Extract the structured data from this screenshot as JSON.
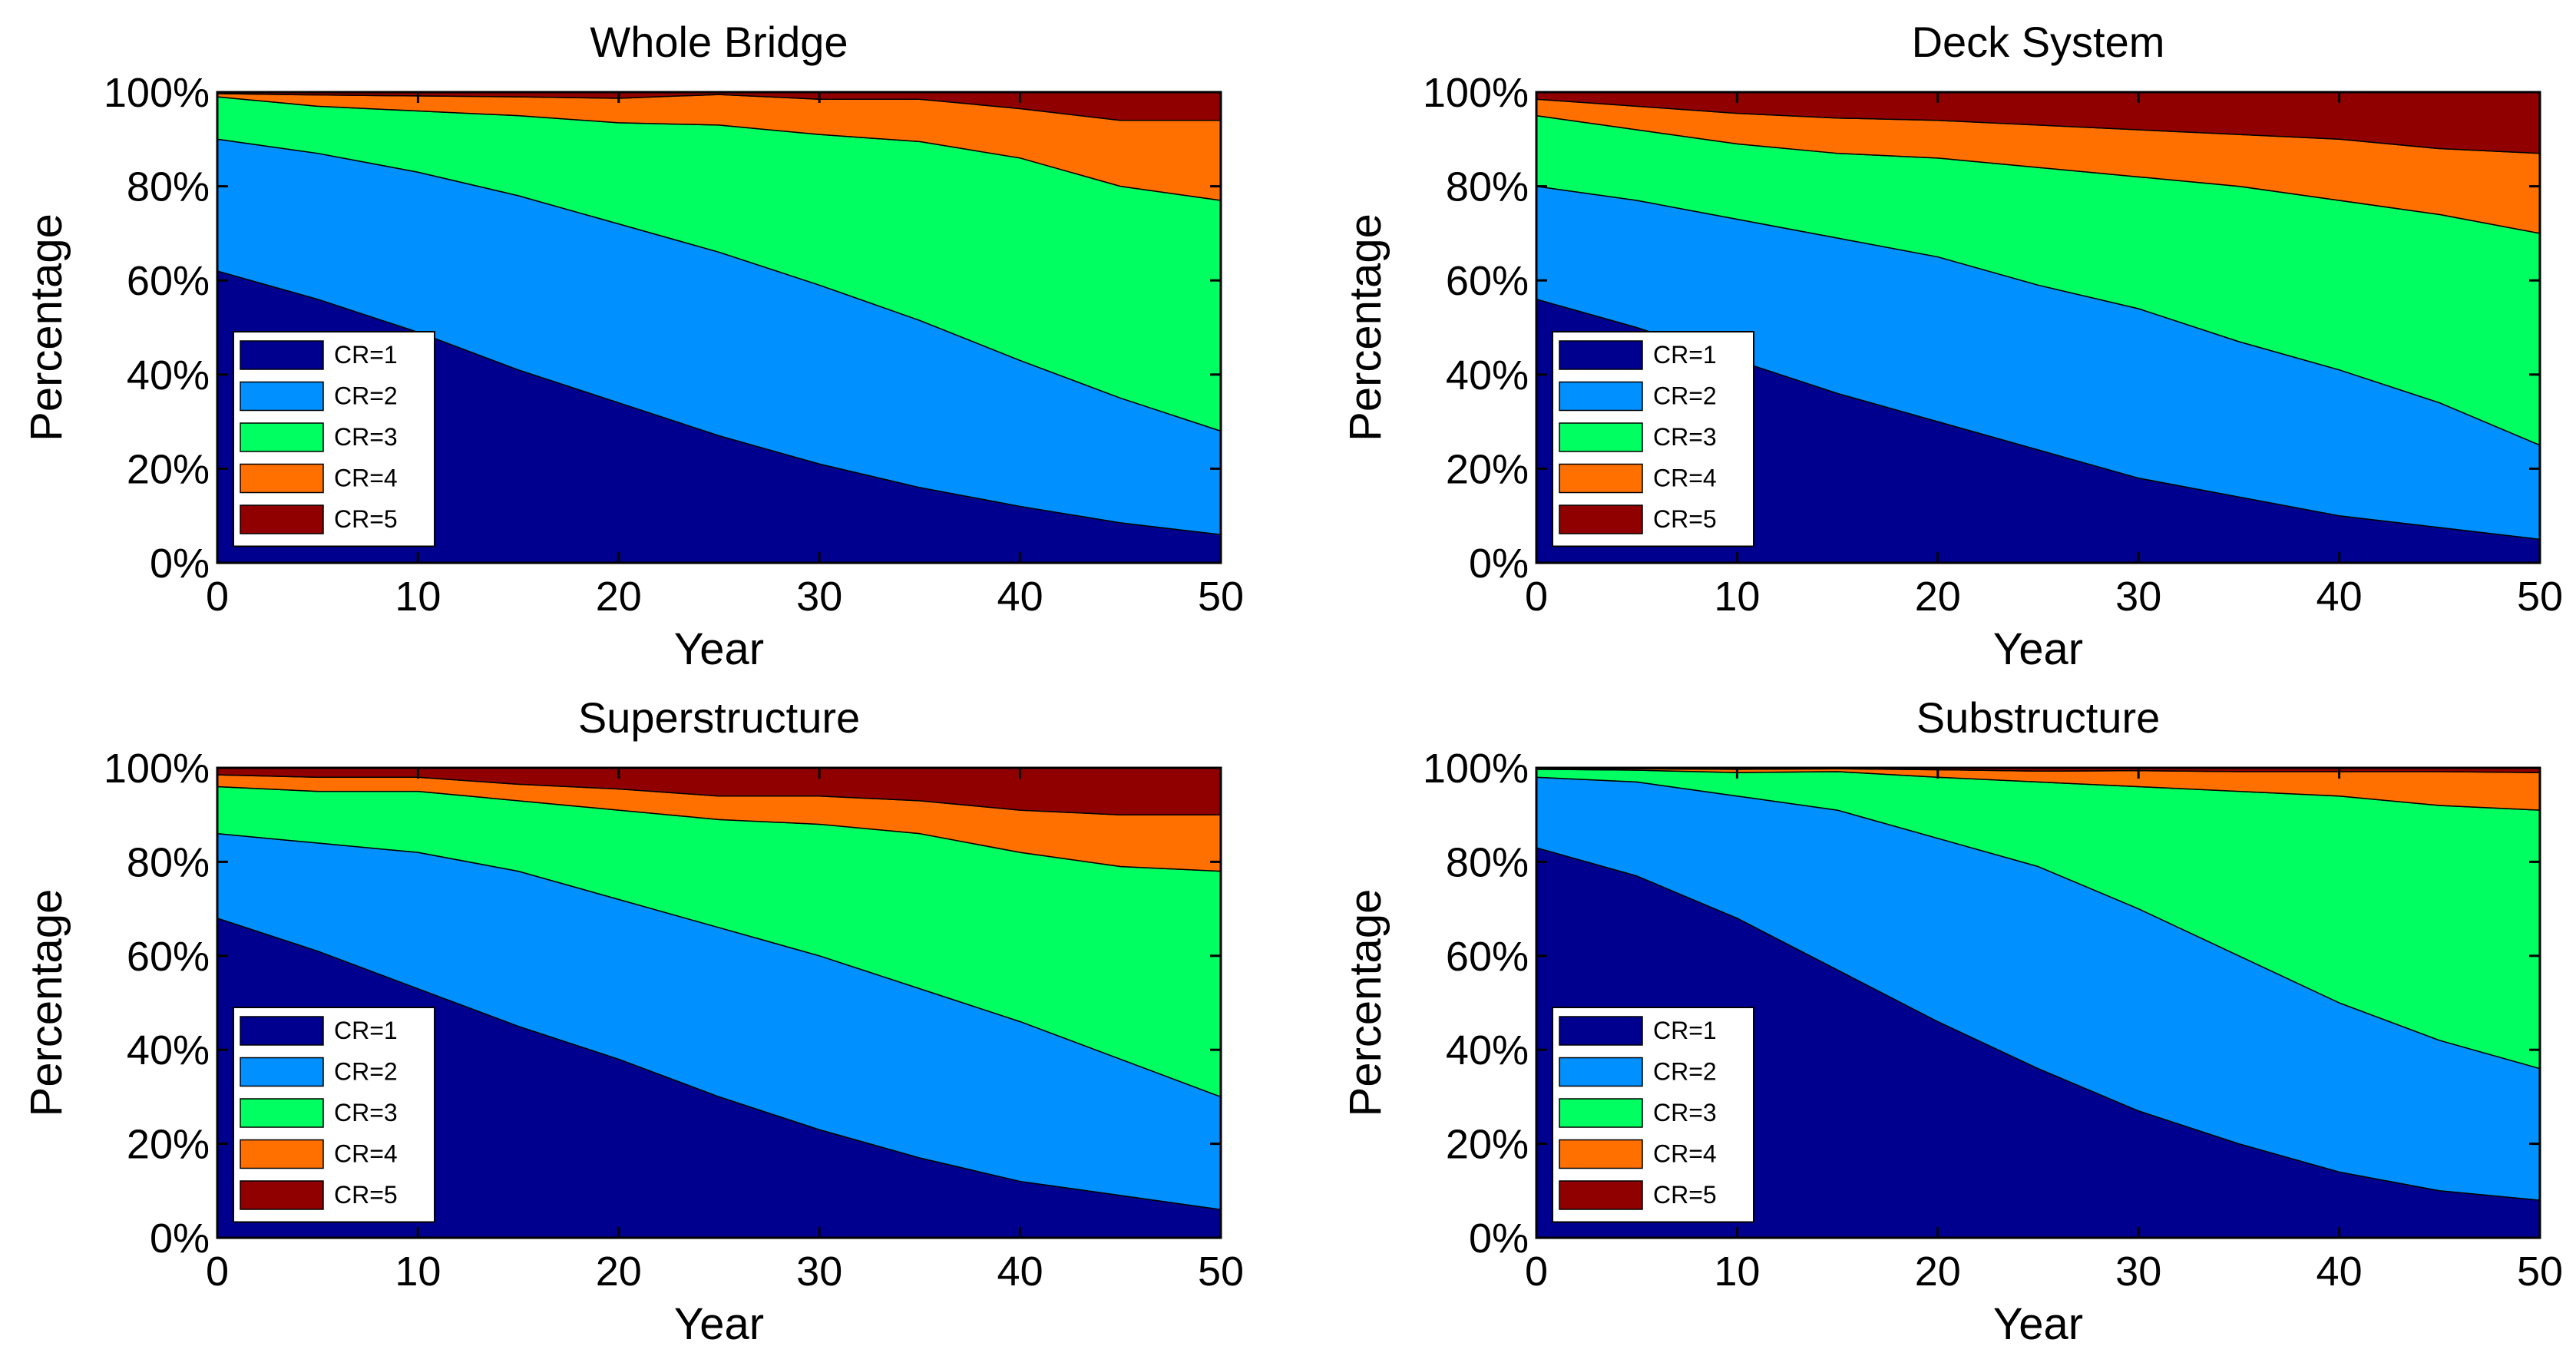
{
  "chart_data": [
    {
      "type": "area",
      "title": "Whole Bridge",
      "xlabel": "Year",
      "ylabel": "Percentage",
      "xlim": [
        0,
        50
      ],
      "ylim": [
        0,
        100
      ],
      "xticks": [
        "0",
        "10",
        "20",
        "30",
        "40",
        "50"
      ],
      "yticks": [
        "0%",
        "20%",
        "40%",
        "60%",
        "80%",
        "100%"
      ],
      "x": [
        0,
        5,
        10,
        15,
        20,
        25,
        30,
        35,
        40,
        45,
        50
      ],
      "series": [
        {
          "name": "CR=1",
          "values": [
            62,
            56,
            49,
            41,
            34,
            27,
            21,
            16,
            12,
            8.5,
            6
          ]
        },
        {
          "name": "CR=2",
          "values": [
            28,
            31,
            34,
            37,
            38,
            39,
            38,
            35.5,
            31,
            26.5,
            22
          ]
        },
        {
          "name": "CR=3",
          "values": [
            9,
            10,
            13,
            17,
            21.5,
            27,
            32,
            38,
            43,
            45,
            49
          ]
        },
        {
          "name": "CR=4",
          "values": [
            0.7,
            2.4,
            3.2,
            4,
            5.2,
            6.5,
            7.5,
            9,
            10.5,
            14,
            17
          ]
        },
        {
          "name": "CR=5",
          "values": [
            0.3,
            0.6,
            0.8,
            1,
            1.3,
            0.5,
            1.5,
            1.5,
            3.5,
            6,
            6
          ]
        }
      ],
      "legend_placement": "lower-left",
      "grid": false
    },
    {
      "type": "area",
      "title": "Deck System",
      "xlabel": "Year",
      "ylabel": "Percentage",
      "xlim": [
        0,
        50
      ],
      "ylim": [
        0,
        100
      ],
      "xticks": [
        "0",
        "10",
        "20",
        "30",
        "40",
        "50"
      ],
      "yticks": [
        "0%",
        "20%",
        "40%",
        "60%",
        "80%",
        "100%"
      ],
      "x": [
        0,
        5,
        10,
        15,
        20,
        25,
        30,
        35,
        40,
        45,
        50
      ],
      "series": [
        {
          "name": "CR=1",
          "values": [
            56,
            50,
            43,
            36,
            30,
            24,
            18,
            14,
            10,
            7.5,
            5
          ]
        },
        {
          "name": "CR=2",
          "values": [
            24,
            27,
            30,
            33,
            35,
            35,
            36,
            33,
            31,
            26.5,
            20
          ]
        },
        {
          "name": "CR=3",
          "values": [
            15,
            15,
            16,
            18,
            21,
            25,
            28,
            33,
            36,
            40,
            45
          ]
        },
        {
          "name": "CR=4",
          "values": [
            3.5,
            5,
            6.5,
            7.5,
            8,
            9,
            10,
            11,
            13,
            14,
            17
          ]
        },
        {
          "name": "CR=5",
          "values": [
            1.5,
            3,
            4.5,
            5.5,
            6,
            7,
            8,
            9,
            10,
            12,
            13
          ]
        }
      ],
      "legend_placement": "lower-left",
      "grid": false
    },
    {
      "type": "area",
      "title": "Superstructure",
      "xlabel": "Year",
      "ylabel": "Percentage",
      "xlim": [
        0,
        50
      ],
      "ylim": [
        0,
        100
      ],
      "xticks": [
        "0",
        "10",
        "20",
        "30",
        "40",
        "50"
      ],
      "yticks": [
        "0%",
        "20%",
        "40%",
        "60%",
        "80%",
        "100%"
      ],
      "x": [
        0,
        5,
        10,
        15,
        20,
        25,
        30,
        35,
        40,
        45,
        50
      ],
      "series": [
        {
          "name": "CR=1",
          "values": [
            68,
            61,
            53,
            45,
            38,
            30,
            23,
            17,
            12,
            9,
            6
          ]
        },
        {
          "name": "CR=2",
          "values": [
            18,
            23,
            29,
            33,
            34,
            36,
            37,
            36,
            34,
            29,
            24
          ]
        },
        {
          "name": "CR=3",
          "values": [
            10,
            11,
            13,
            15,
            19,
            23,
            28,
            33,
            36,
            41,
            48
          ]
        },
        {
          "name": "CR=4",
          "values": [
            2.5,
            3,
            3,
            3.5,
            4.5,
            5,
            6,
            7,
            9,
            11,
            12
          ]
        },
        {
          "name": "CR=5",
          "values": [
            1.5,
            2,
            2,
            3.5,
            4.5,
            6,
            6,
            7,
            9,
            10,
            10
          ]
        }
      ],
      "legend_placement": "lower-left",
      "grid": false
    },
    {
      "type": "area",
      "title": "Substructure",
      "xlabel": "Year",
      "ylabel": "Percentage",
      "xlim": [
        0,
        50
      ],
      "ylim": [
        0,
        100
      ],
      "xticks": [
        "0",
        "10",
        "20",
        "30",
        "40",
        "50"
      ],
      "yticks": [
        "0%",
        "20%",
        "40%",
        "60%",
        "80%",
        "100%"
      ],
      "x": [
        0,
        5,
        10,
        15,
        20,
        25,
        30,
        35,
        40,
        45,
        50
      ],
      "series": [
        {
          "name": "CR=1",
          "values": [
            83,
            77,
            68,
            57,
            46,
            36,
            27,
            20,
            14,
            10,
            8
          ]
        },
        {
          "name": "CR=2",
          "values": [
            15,
            20,
            26,
            34,
            39,
            43,
            43,
            40,
            36,
            32,
            28
          ]
        },
        {
          "name": "CR=3",
          "values": [
            1.7,
            2.5,
            5,
            8.2,
            13,
            18,
            26,
            35,
            44,
            50,
            55
          ]
        },
        {
          "name": "CR=4",
          "values": [
            0.2,
            0.3,
            0.7,
            0.6,
            1.6,
            2.3,
            3.4,
            4.2,
            5.2,
            7.2,
            8
          ]
        },
        {
          "name": "CR=5",
          "values": [
            0.1,
            0.2,
            0.3,
            0.2,
            0.4,
            0.7,
            0.6,
            0.8,
            0.8,
            0.8,
            1
          ]
        }
      ],
      "legend_placement": "lower-left",
      "grid": false
    }
  ],
  "colors": [
    "#00008f",
    "#0090ff",
    "#00ff60",
    "#ff7000",
    "#900000"
  ]
}
